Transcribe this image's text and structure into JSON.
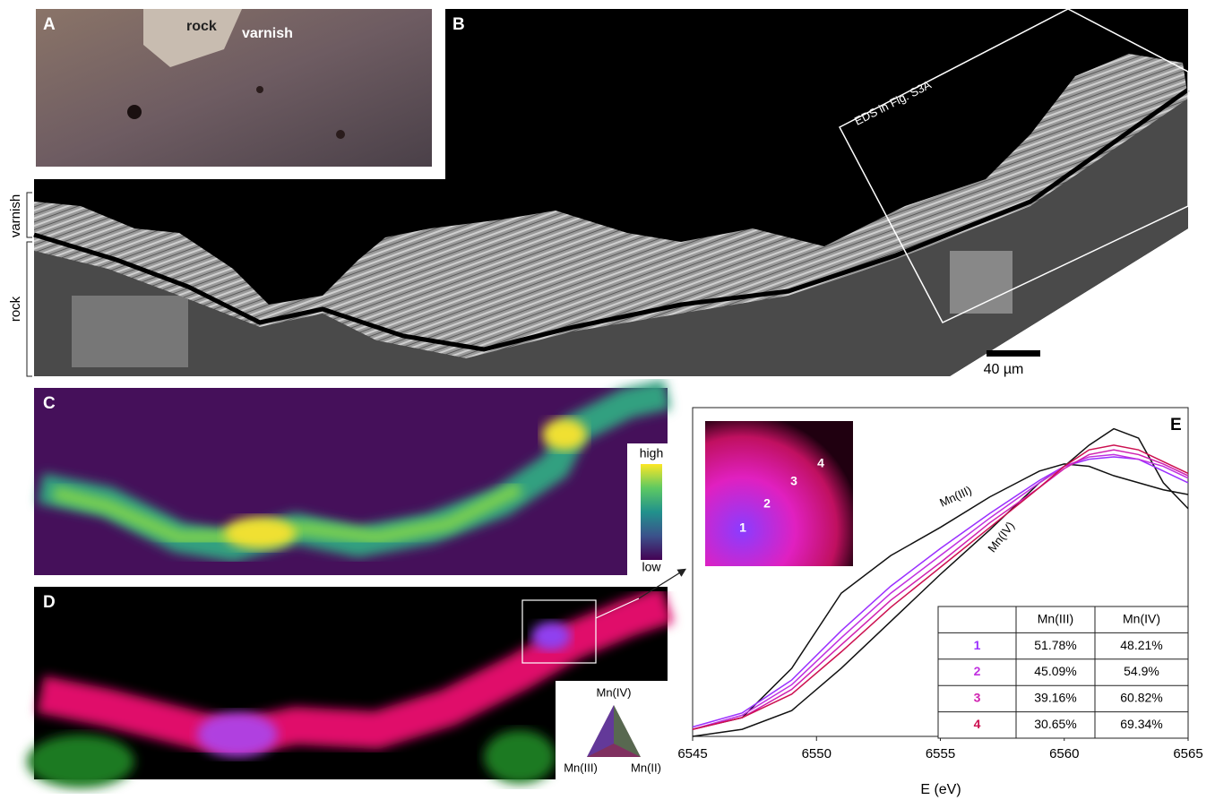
{
  "panels": {
    "a": {
      "letter": "A",
      "rock": "rock",
      "varnish": "varnish"
    },
    "b": {
      "letter": "B",
      "box_label": "EDS in Fig. S3A",
      "side_varnish": "varnish",
      "side_rock": "rock",
      "scale_bar": "40 µm"
    },
    "c": {
      "letter": "C",
      "colorbar_high": "high",
      "colorbar_low": "low"
    },
    "d": {
      "letter": "D",
      "triangle_top": "Mn(IV)",
      "triangle_left": "Mn(III)",
      "triangle_right": "Mn(II)"
    },
    "inset_points": [
      "1",
      "2",
      "3",
      "4"
    ]
  },
  "chart_data": {
    "type": "line",
    "label": "E",
    "x_label": "E (eV)",
    "x": [
      6545,
      6547,
      6549,
      6551,
      6553,
      6555,
      6557,
      6559,
      6560,
      6561,
      6562,
      6563,
      6564,
      6565
    ],
    "xlim": [
      6545,
      6565
    ],
    "xticks": [
      6545,
      6550,
      6555,
      6560,
      6565
    ],
    "ylim": [
      0,
      1.4
    ],
    "series": [
      {
        "name": "Mn(III)",
        "color": "#111111",
        "values": [
          0.03,
          0.08,
          0.29,
          0.61,
          0.77,
          0.89,
          1.02,
          1.13,
          1.16,
          1.15,
          1.11,
          1.08,
          1.05,
          1.03
        ]
      },
      {
        "name": "Mn(IV)",
        "color": "#111111",
        "values": [
          0,
          0.03,
          0.11,
          0.29,
          0.49,
          0.69,
          0.88,
          1.08,
          1.15,
          1.24,
          1.31,
          1.27,
          1.08,
          0.97
        ]
      },
      {
        "name": "1",
        "color": "#9b30ff",
        "values": [
          0.04,
          0.1,
          0.24,
          0.45,
          0.64,
          0.8,
          0.95,
          1.09,
          1.15,
          1.18,
          1.19,
          1.18,
          1.13,
          1.08
        ]
      },
      {
        "name": "2",
        "color": "#c030e0",
        "values": [
          0.03,
          0.09,
          0.22,
          0.42,
          0.61,
          0.77,
          0.93,
          1.08,
          1.15,
          1.19,
          1.2,
          1.18,
          1.15,
          1.1
        ]
      },
      {
        "name": "3",
        "color": "#d020b0",
        "values": [
          0.03,
          0.08,
          0.2,
          0.39,
          0.58,
          0.74,
          0.91,
          1.06,
          1.14,
          1.2,
          1.22,
          1.2,
          1.16,
          1.11
        ]
      },
      {
        "name": "4",
        "color": "#cc1050",
        "values": [
          0.03,
          0.08,
          0.18,
          0.36,
          0.55,
          0.72,
          0.89,
          1.06,
          1.15,
          1.22,
          1.24,
          1.22,
          1.17,
          1.12
        ]
      }
    ],
    "table": {
      "header": [
        "Mn(III)",
        "Mn(IV)"
      ],
      "rows": [
        [
          "51.78%",
          "48.21%"
        ],
        [
          "45.09%",
          "54.9%"
        ],
        [
          "39.16%",
          "60.82%"
        ],
        [
          "30.65%",
          "69.34%"
        ]
      ]
    }
  }
}
